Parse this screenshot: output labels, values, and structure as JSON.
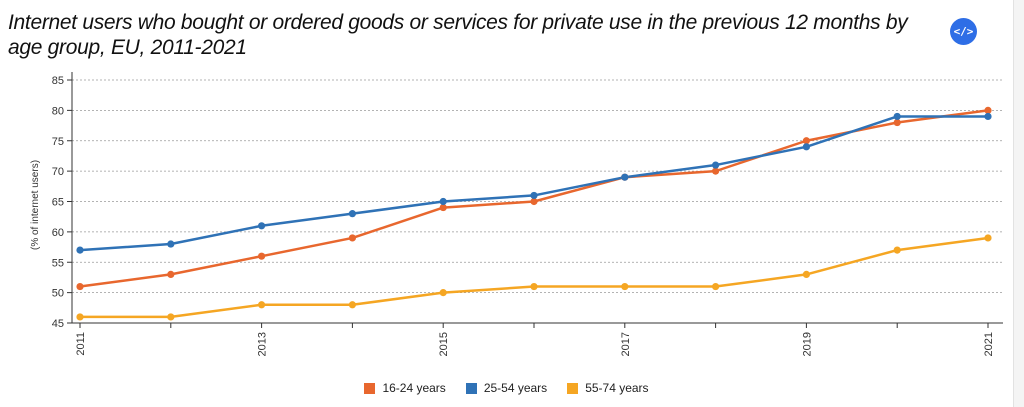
{
  "title": "Internet users who bought or ordered goods or services for private use in the previous 12 months by age group, EU, 2011-2021",
  "embed_button": {
    "label": "</>",
    "icon": "code-embed-icon"
  },
  "chart_data": {
    "type": "line",
    "x": [
      2011,
      2012,
      2013,
      2014,
      2015,
      2016,
      2017,
      2018,
      2019,
      2020,
      2021
    ],
    "x_tick_labels": [
      "2011",
      "2013",
      "2015",
      "2017",
      "2019",
      "2021"
    ],
    "ylabel": "(% of internet users)",
    "xlabel": "",
    "ylim": [
      45,
      85
    ],
    "y_ticks": [
      45,
      50,
      55,
      60,
      65,
      70,
      75,
      80,
      85
    ],
    "grid": "horizontal dotted",
    "legend_position": "bottom-center",
    "series": [
      {
        "name": "16-24 years",
        "color": "#e8672e",
        "values": [
          51,
          53,
          56,
          59,
          64,
          65,
          69,
          70,
          75,
          78,
          80
        ]
      },
      {
        "name": "25-54 years",
        "color": "#2f72b6",
        "values": [
          57,
          58,
          61,
          63,
          65,
          66,
          69,
          71,
          74,
          79,
          79
        ]
      },
      {
        "name": "55-74 years",
        "color": "#f5a623",
        "values": [
          46,
          46,
          48,
          48,
          50,
          51,
          51,
          51,
          53,
          57,
          59
        ]
      }
    ]
  }
}
